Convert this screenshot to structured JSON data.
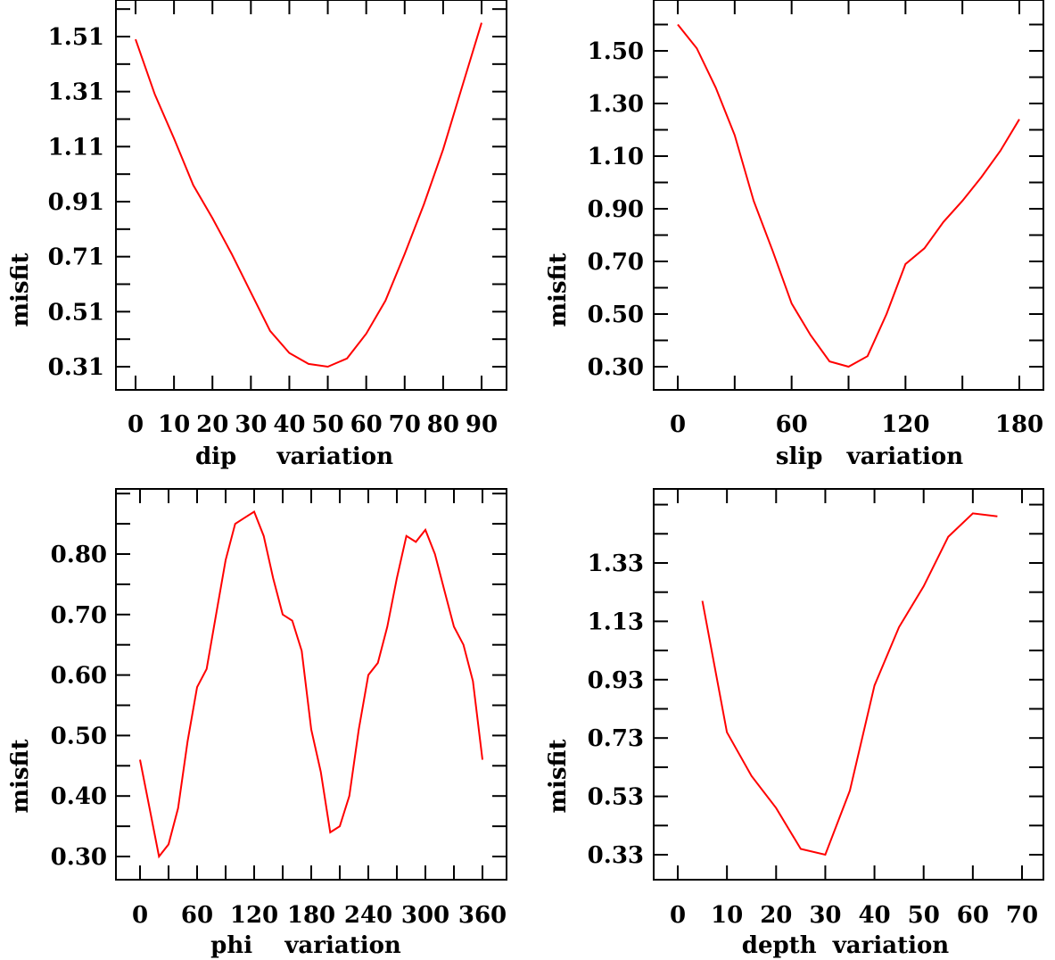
{
  "line_color": "#ff0000",
  "chart_data": [
    {
      "type": "line",
      "xlabel": "dip     variation",
      "ylabel": "misfit",
      "xticks": [
        0,
        10,
        20,
        30,
        40,
        50,
        60,
        70,
        80,
        90
      ],
      "yticks": [
        0.31,
        0.51,
        0.71,
        0.91,
        1.11,
        1.31,
        1.51
      ],
      "ytick_labels": [
        "0.31",
        "0.51",
        "0.71",
        "0.91",
        "1.11",
        "1.31",
        "1.51"
      ],
      "x": [
        0,
        5,
        10,
        15,
        20,
        25,
        30,
        35,
        40,
        45,
        50,
        55,
        60,
        65,
        70,
        75,
        80,
        85,
        90
      ],
      "y": [
        1.5,
        1.3,
        1.14,
        0.97,
        0.85,
        0.72,
        0.58,
        0.44,
        0.36,
        0.32,
        0.31,
        0.34,
        0.43,
        0.55,
        0.72,
        0.9,
        1.1,
        1.33,
        1.56
      ]
    },
    {
      "type": "line",
      "xlabel": "slip   variation",
      "ylabel": "misfit",
      "xticks": [
        0,
        60,
        120,
        180
      ],
      "yticks": [
        0.3,
        0.5,
        0.7,
        0.9,
        1.1,
        1.3,
        1.5
      ],
      "ytick_labels": [
        "0.30",
        "0.50",
        "0.70",
        "0.90",
        "1.10",
        "1.30",
        "1.50"
      ],
      "x": [
        0,
        10,
        20,
        30,
        40,
        50,
        60,
        70,
        80,
        90,
        100,
        110,
        120,
        130,
        140,
        150,
        160,
        170,
        180
      ],
      "y": [
        1.6,
        1.51,
        1.36,
        1.18,
        0.93,
        0.74,
        0.54,
        0.42,
        0.32,
        0.3,
        0.34,
        0.5,
        0.69,
        0.75,
        0.85,
        0.93,
        1.02,
        1.12,
        1.24
      ]
    },
    {
      "type": "line",
      "xlabel": "phi    variation",
      "ylabel": "misfit",
      "xticks": [
        0,
        60,
        120,
        180,
        240,
        300,
        360
      ],
      "yticks": [
        0.3,
        0.4,
        0.5,
        0.6,
        0.7,
        0.8
      ],
      "ytick_labels": [
        "0.30",
        "0.40",
        "0.50",
        "0.60",
        "0.70",
        "0.80"
      ],
      "x": [
        0,
        10,
        20,
        30,
        40,
        50,
        60,
        70,
        80,
        90,
        100,
        110,
        120,
        130,
        140,
        150,
        160,
        170,
        180,
        190,
        200,
        210,
        220,
        230,
        240,
        250,
        260,
        270,
        280,
        290,
        300,
        310,
        320,
        330,
        340,
        350,
        360
      ],
      "y": [
        0.46,
        0.38,
        0.3,
        0.32,
        0.38,
        0.49,
        0.58,
        0.61,
        0.7,
        0.79,
        0.85,
        0.86,
        0.87,
        0.83,
        0.76,
        0.7,
        0.69,
        0.64,
        0.51,
        0.44,
        0.34,
        0.35,
        0.4,
        0.51,
        0.6,
        0.62,
        0.68,
        0.76,
        0.83,
        0.82,
        0.84,
        0.8,
        0.74,
        0.68,
        0.65,
        0.59,
        0.46
      ]
    },
    {
      "type": "line",
      "xlabel": "depth  variation",
      "ylabel": "misfit",
      "xticks": [
        0,
        10,
        20,
        30,
        40,
        50,
        60,
        70
      ],
      "yticks": [
        0.33,
        0.53,
        0.73,
        0.93,
        1.13,
        1.33
      ],
      "ytick_labels": [
        "0.33",
        "0.53",
        "0.73",
        "0.93",
        "1.13",
        "1.33"
      ],
      "x": [
        5,
        10,
        15,
        20,
        25,
        30,
        35,
        40,
        45,
        50,
        55,
        60,
        65
      ],
      "y": [
        1.2,
        0.75,
        0.6,
        0.49,
        0.35,
        0.33,
        0.55,
        0.91,
        1.11,
        1.25,
        1.42,
        1.5,
        1.49
      ]
    }
  ]
}
